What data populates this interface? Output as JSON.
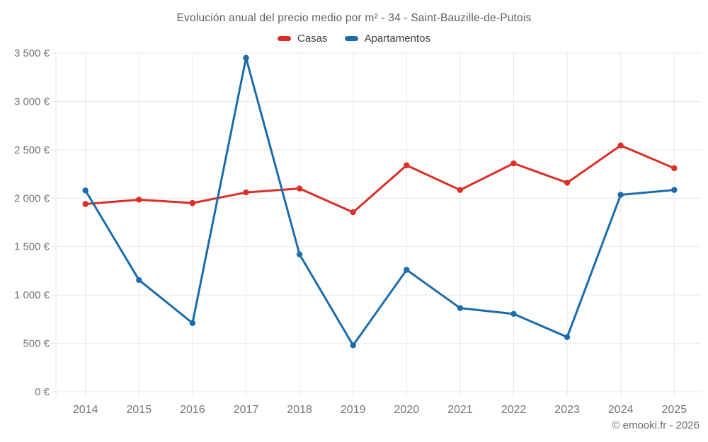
{
  "header": {
    "title": "Evolución anual del precio medio por m² - 34 - Saint-Bauzille-de-Putois"
  },
  "footer": {
    "credit": "© emooki.fr - 2026"
  },
  "colors": {
    "casas": "#d92f27",
    "apartamentos": "#1b6ca8",
    "grid": "#e8e8e8",
    "tick_text": "#757575"
  },
  "chart_data": {
    "type": "line",
    "title": "Evolución anual del precio medio por m² - 34 - Saint-Bauzille-de-Putois",
    "categories": [
      "2014",
      "2015",
      "2016",
      "2017",
      "2018",
      "2019",
      "2020",
      "2021",
      "2022",
      "2023",
      "2024",
      "2025"
    ],
    "series": [
      {
        "name": "Casas",
        "color": "#d92f27",
        "values": [
          1940,
          1985,
          1950,
          2060,
          2100,
          1855,
          2340,
          2085,
          2360,
          2160,
          2545,
          2310
        ]
      },
      {
        "name": "Apartamentos",
        "color": "#1b6ca8",
        "values": [
          2080,
          1155,
          710,
          3450,
          1420,
          480,
          1260,
          865,
          805,
          565,
          2035,
          2085
        ]
      }
    ],
    "xlabel": "",
    "ylabel": "",
    "ylim": [
      0,
      3500
    ],
    "ytick_step": 500,
    "ytick_labels": [
      "0 €",
      "500 €",
      "1 000 €",
      "1 500 €",
      "2 000 €",
      "2 500 €",
      "3 000 €",
      "3 500 €"
    ],
    "grid": true,
    "legend_position": "top",
    "unit": "€"
  }
}
